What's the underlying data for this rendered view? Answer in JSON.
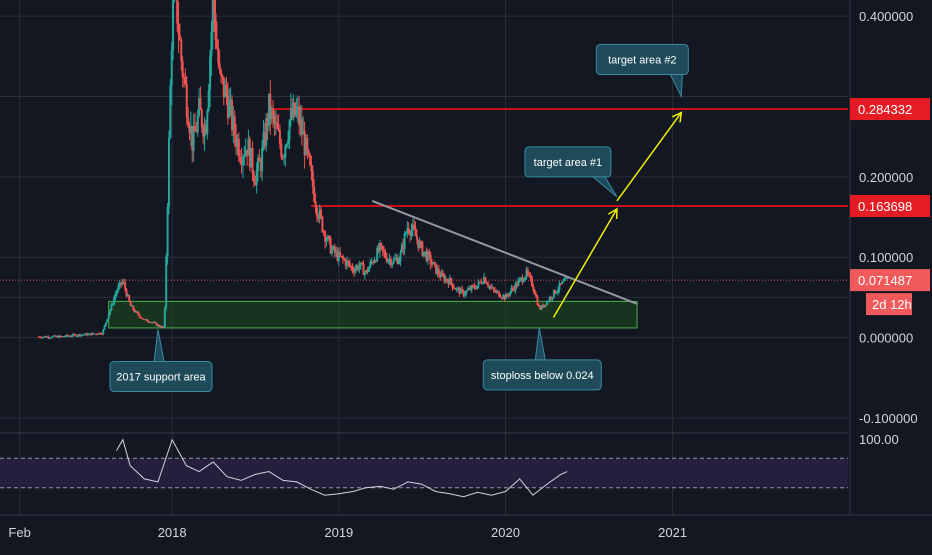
{
  "colors": {
    "background": "#131722",
    "grid": "#2a2e39",
    "candle_up": "#26a69a",
    "candle_down": "#ef5350",
    "resistance": "#c8101a",
    "price_line": "#e05555",
    "trendline": "#9598a1",
    "arrow": "#f0f000",
    "support_zone_fill": "#1b4d1b",
    "support_zone_stroke": "#4caf50",
    "callout_fill": "#1e4a59",
    "callout_stroke": "#3a8aa0",
    "rsi_line": "#d1d4dc",
    "rsi_band": "#2a2145",
    "axis_text": "#d1d4dc",
    "price_tag": "#e51c23",
    "current_tag": "#f05a5a"
  },
  "chart_data": [
    {
      "type": "candlestick",
      "title": "",
      "xlabel": "",
      "ylabel": "",
      "x_ticks": [
        "Feb",
        "2018",
        "2019",
        "2020",
        "2021"
      ],
      "x_tick_dates": [
        "2017-02-01",
        "2018-01-01",
        "2019-01-01",
        "2020-01-01",
        "2021-01-01"
      ],
      "x_range": [
        "2016-12-20",
        "2022-01-20"
      ],
      "y_ticks": [
        "0.400000",
        "0.200000",
        "0.100000",
        "0.000000",
        "-0.100000"
      ],
      "y_tick_values": [
        0.4,
        0.2,
        0.1,
        0.0,
        -0.1
      ],
      "y_range": [
        -0.115,
        0.42
      ],
      "grid": true,
      "series": [
        {
          "close_trace": [
            [
              "2017-05-01",
              0.001
            ],
            [
              "2017-06-01",
              0.003
            ],
            [
              "2017-07-01",
              0.004
            ],
            [
              "2017-08-01",
              0.006
            ],
            [
              "2017-09-01",
              0.058
            ],
            [
              "2017-09-15",
              0.07
            ],
            [
              "2017-10-01",
              0.04
            ],
            [
              "2017-10-15",
              0.03
            ],
            [
              "2017-11-01",
              0.022
            ],
            [
              "2017-11-15",
              0.02
            ],
            [
              "2017-12-01",
              0.015
            ],
            [
              "2017-12-15",
              0.012
            ],
            [
              "2018-01-01",
              0.4
            ],
            [
              "2018-01-10",
              0.42
            ],
            [
              "2018-01-20",
              0.35
            ],
            [
              "2018-02-01",
              0.3
            ],
            [
              "2018-02-15",
              0.24
            ],
            [
              "2018-03-01",
              0.28
            ],
            [
              "2018-03-15",
              0.26
            ],
            [
              "2018-04-01",
              0.42
            ],
            [
              "2018-04-15",
              0.32
            ],
            [
              "2018-05-01",
              0.3
            ],
            [
              "2018-05-15",
              0.26
            ],
            [
              "2018-06-01",
              0.23
            ],
            [
              "2018-06-15",
              0.24
            ],
            [
              "2018-07-01",
              0.2
            ],
            [
              "2018-07-15",
              0.22
            ],
            [
              "2018-08-01",
              0.285
            ],
            [
              "2018-08-15",
              0.26
            ],
            [
              "2018-09-01",
              0.23
            ],
            [
              "2018-09-15",
              0.27
            ],
            [
              "2018-10-01",
              0.28
            ],
            [
              "2018-10-15",
              0.25
            ],
            [
              "2018-11-01",
              0.2
            ],
            [
              "2018-11-15",
              0.16
            ],
            [
              "2018-12-01",
              0.13
            ],
            [
              "2018-12-15",
              0.11
            ],
            [
              "2019-01-01",
              0.1
            ],
            [
              "2019-01-15",
              0.095
            ],
            [
              "2019-02-01",
              0.085
            ],
            [
              "2019-02-15",
              0.09
            ],
            [
              "2019-03-01",
              0.08
            ],
            [
              "2019-03-15",
              0.095
            ],
            [
              "2019-04-01",
              0.11
            ],
            [
              "2019-04-15",
              0.1
            ],
            [
              "2019-05-01",
              0.095
            ],
            [
              "2019-05-15",
              0.1
            ],
            [
              "2019-06-01",
              0.14
            ],
            [
              "2019-06-15",
              0.13
            ],
            [
              "2019-07-01",
              0.11
            ],
            [
              "2019-07-15",
              0.1
            ],
            [
              "2019-08-01",
              0.085
            ],
            [
              "2019-08-15",
              0.075
            ],
            [
              "2019-09-01",
              0.07
            ],
            [
              "2019-09-15",
              0.06
            ],
            [
              "2019-10-01",
              0.055
            ],
            [
              "2019-10-15",
              0.06
            ],
            [
              "2019-11-01",
              0.065
            ],
            [
              "2019-11-15",
              0.075
            ],
            [
              "2019-12-01",
              0.06
            ],
            [
              "2019-12-15",
              0.055
            ],
            [
              "2020-01-01",
              0.05
            ],
            [
              "2020-01-15",
              0.06
            ],
            [
              "2020-02-01",
              0.07
            ],
            [
              "2020-02-15",
              0.08
            ],
            [
              "2020-03-01",
              0.065
            ],
            [
              "2020-03-15",
              0.035
            ],
            [
              "2020-04-01",
              0.045
            ],
            [
              "2020-04-15",
              0.055
            ],
            [
              "2020-05-01",
              0.065
            ],
            [
              "2020-05-15",
              0.071487
            ]
          ]
        }
      ],
      "horizontal_levels": [
        {
          "name": "resistance-target-2",
          "value": 0.284332,
          "from": "2018-08-01",
          "to": "2022-01-20"
        },
        {
          "name": "resistance-target-1",
          "value": 0.163698,
          "from": "2018-11-01",
          "to": "2022-01-20"
        },
        {
          "name": "current-price",
          "value": 0.071487,
          "from": "2016-12-20",
          "to": "2022-01-20",
          "dotted": true
        }
      ],
      "trendline": {
        "from": [
          "2019-03-15",
          0.17
        ],
        "to": [
          "2020-10-15",
          0.042
        ]
      },
      "support_zone": {
        "from": "2017-08-15",
        "to": "2020-10-15",
        "y_low": 0.012,
        "y_high": 0.045
      },
      "arrows": [
        {
          "from": [
            "2020-04-15",
            0.025
          ],
          "to": [
            "2020-09-01",
            0.16
          ]
        },
        {
          "from": [
            "2020-09-01",
            0.17
          ],
          "to": [
            "2021-01-20",
            0.28
          ]
        }
      ],
      "price_tags": [
        {
          "label": "0.284332",
          "value": 0.284332,
          "kind": "level"
        },
        {
          "label": "0.163698",
          "value": 0.163698,
          "kind": "level"
        },
        {
          "label": "0.071487",
          "value": 0.071487,
          "kind": "current"
        }
      ],
      "countdown_label": "2d 12h",
      "annotations": [
        {
          "text": "target area #2",
          "anchor": [
            "2021-01-20",
            0.3
          ]
        },
        {
          "text": "target area #1",
          "anchor": [
            "2020-09-01",
            0.175
          ]
        },
        {
          "text": "2017 support area",
          "anchor": [
            "2017-12-01",
            0.01
          ]
        },
        {
          "text": "stoploss below 0.024",
          "anchor": [
            "2020-03-15",
            0.012
          ]
        }
      ]
    },
    {
      "type": "line",
      "title": "",
      "y_ticks": [
        "100.00"
      ],
      "y_tick_values": [
        100
      ],
      "y_range": [
        0,
        100
      ],
      "band": [
        30,
        70
      ],
      "series": [
        {
          "points": [
            [
              "2017-09-01",
              80
            ],
            [
              "2017-09-15",
              95
            ],
            [
              "2017-10-01",
              60
            ],
            [
              "2017-11-01",
              42
            ],
            [
              "2017-12-01",
              38
            ],
            [
              "2018-01-01",
              95
            ],
            [
              "2018-02-01",
              60
            ],
            [
              "2018-03-01",
              52
            ],
            [
              "2018-04-01",
              65
            ],
            [
              "2018-05-01",
              45
            ],
            [
              "2018-06-01",
              40
            ],
            [
              "2018-07-01",
              48
            ],
            [
              "2018-08-01",
              52
            ],
            [
              "2018-09-01",
              40
            ],
            [
              "2018-10-01",
              38
            ],
            [
              "2018-11-01",
              28
            ],
            [
              "2018-12-01",
              20
            ],
            [
              "2019-01-01",
              22
            ],
            [
              "2019-02-01",
              25
            ],
            [
              "2019-03-01",
              30
            ],
            [
              "2019-04-01",
              32
            ],
            [
              "2019-05-01",
              28
            ],
            [
              "2019-06-01",
              38
            ],
            [
              "2019-07-01",
              35
            ],
            [
              "2019-08-01",
              25
            ],
            [
              "2019-09-01",
              22
            ],
            [
              "2019-10-01",
              18
            ],
            [
              "2019-11-01",
              24
            ],
            [
              "2019-12-01",
              20
            ],
            [
              "2020-01-01",
              25
            ],
            [
              "2020-02-01",
              42
            ],
            [
              "2020-03-01",
              20
            ],
            [
              "2020-04-01",
              35
            ],
            [
              "2020-05-01",
              48
            ],
            [
              "2020-05-15",
              52
            ]
          ]
        }
      ]
    }
  ]
}
